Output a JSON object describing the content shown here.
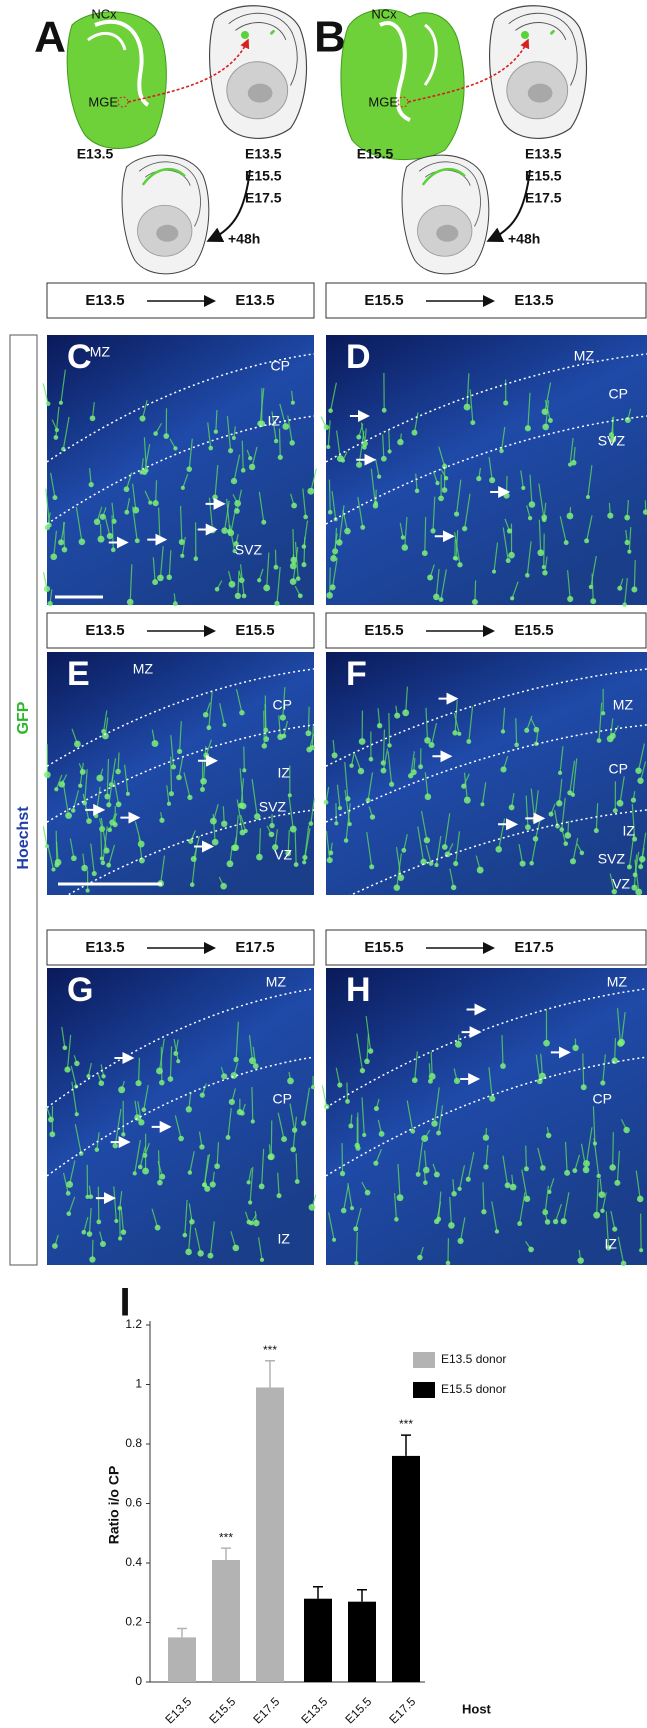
{
  "panel_a": {
    "letter": "A",
    "cortex": "NCx",
    "origin": "MGE",
    "donor_age": "E13.5",
    "host_ages": [
      "E13.5",
      "E15.5",
      "E17.5"
    ],
    "survival": "+48h"
  },
  "panel_b": {
    "letter": "B",
    "cortex": "NCx",
    "origin": "MGE",
    "donor_age": "E15.5",
    "host_ages": [
      "E13.5",
      "E15.5",
      "E17.5"
    ],
    "survival": "+48h"
  },
  "stain_labels": {
    "nuclear": "Hoechst",
    "reporter": "GFP"
  },
  "micrographs": [
    {
      "letter": "C",
      "donor": "E13.5",
      "host": "E13.5",
      "regions": [
        "MZ",
        "CP",
        "IZ",
        "SVZ"
      ]
    },
    {
      "letter": "D",
      "donor": "E15.5",
      "host": "E13.5",
      "regions": [
        "MZ",
        "CP",
        "SVZ"
      ]
    },
    {
      "letter": "E",
      "donor": "E13.5",
      "host": "E15.5",
      "regions": [
        "MZ",
        "CP",
        "IZ",
        "SVZ",
        "VZ"
      ]
    },
    {
      "letter": "F",
      "donor": "E15.5",
      "host": "E15.5",
      "regions": [
        "MZ",
        "CP",
        "IZ",
        "SVZ",
        "VZ"
      ]
    },
    {
      "letter": "G",
      "donor": "E13.5",
      "host": "E17.5",
      "regions": [
        "MZ",
        "CP",
        "IZ"
      ]
    },
    {
      "letter": "H",
      "donor": "E15.5",
      "host": "E17.5",
      "regions": [
        "MZ",
        "CP",
        "IZ"
      ]
    }
  ],
  "chart_data": {
    "type": "bar",
    "letter": "I",
    "y_label": "Ratio i/o CP",
    "x_label": "Host",
    "categories": [
      "E13.5",
      "E15.5",
      "E17.5"
    ],
    "series": [
      {
        "name": "E13.5 donor",
        "color": "#b3b3b3",
        "values": [
          0.15,
          0.41,
          0.99
        ],
        "errors": [
          0.03,
          0.04,
          0.09
        ],
        "significance": [
          null,
          "***",
          "***"
        ]
      },
      {
        "name": "E15.5 donor",
        "color": "#000000",
        "values": [
          0.28,
          0.27,
          0.76
        ],
        "errors": [
          0.04,
          0.04,
          0.07
        ],
        "significance": [
          null,
          null,
          "***"
        ]
      }
    ],
    "ylim": [
      0,
      1.2
    ],
    "yticks": [
      0,
      0.2,
      0.4,
      0.6,
      0.8,
      1,
      1.2
    ]
  }
}
